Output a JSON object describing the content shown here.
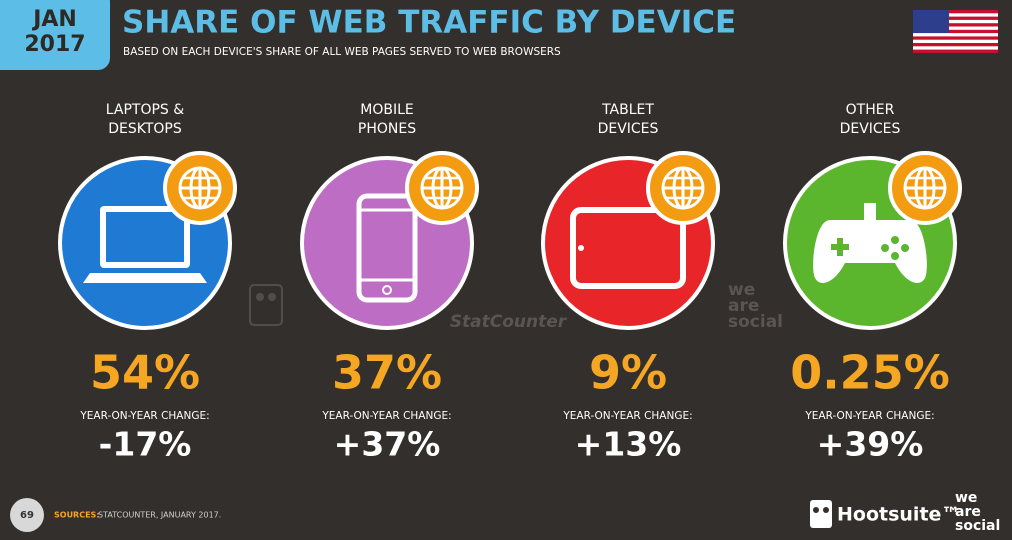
{
  "header": {
    "badge": [
      "JAN",
      "2017"
    ],
    "title": "SHARE OF WEB TRAFFIC BY DEVICE",
    "subtitle": "BASED ON EACH DEVICE'S SHARE OF ALL WEB PAGES SERVED TO WEB BROWSERS"
  },
  "devices": [
    {
      "label": [
        "LAPTOPS &",
        "DESKTOPS"
      ],
      "share": "54%",
      "change_label": "YEAR-ON-YEAR CHANGE:",
      "change": "-17%"
    },
    {
      "label": [
        "MOBILE",
        "PHONES"
      ],
      "share": "37%",
      "change_label": "YEAR-ON-YEAR CHANGE:",
      "change": "+37%"
    },
    {
      "label": [
        "TABLET",
        "DEVICES"
      ],
      "share": "9%",
      "change_label": "YEAR-ON-YEAR CHANGE:",
      "change": "+13%"
    },
    {
      "label": [
        "OTHER",
        "DEVICES"
      ],
      "share": "0.25%",
      "change_label": "YEAR-ON-YEAR CHANGE:",
      "change": "+39%"
    }
  ],
  "watermarks": {
    "statcounter": "StatCounter",
    "wearesocial": [
      "we",
      "are",
      "social"
    ]
  },
  "footer": {
    "page": "69",
    "sources_label": "SOURCES:",
    "sources": "STATCOUNTER, JANUARY 2017.",
    "hootsuite": "Hootsuite™",
    "wearesocial": [
      "we",
      "are",
      "social"
    ]
  }
}
